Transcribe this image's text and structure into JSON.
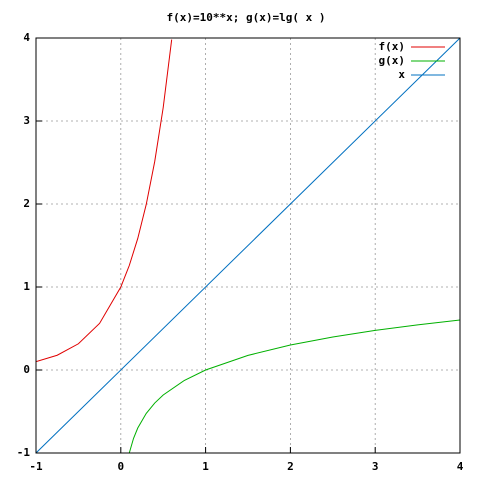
{
  "chart_data": {
    "type": "line",
    "title": "f(x)=10**x; g(x)=lg( x )",
    "series": [
      {
        "name": "f(x)",
        "color": "#e00000",
        "x": [
          -1,
          -0.75,
          -0.5,
          -0.25,
          0,
          0.1,
          0.2,
          0.3,
          0.4,
          0.5,
          0.6
        ],
        "values": [
          0.1,
          0.178,
          0.316,
          0.562,
          1,
          1.259,
          1.585,
          1.995,
          2.512,
          3.162,
          3.981
        ]
      },
      {
        "name": "g(x)",
        "color": "#00b000",
        "x": [
          0.1,
          0.15,
          0.2,
          0.3,
          0.4,
          0.5,
          0.75,
          1,
          1.5,
          2,
          2.5,
          3,
          3.5,
          4
        ],
        "values": [
          -1,
          -0.824,
          -0.699,
          -0.523,
          -0.398,
          -0.301,
          -0.125,
          0,
          0.176,
          0.301,
          0.398,
          0.477,
          0.544,
          0.602
        ]
      },
      {
        "name": "x",
        "color": "#0070c0",
        "x": [
          -1,
          4
        ],
        "values": [
          -1,
          4
        ]
      }
    ],
    "xlim": [
      -1,
      4
    ],
    "ylim": [
      -1,
      4
    ],
    "xticks": [
      -1,
      0,
      1,
      2,
      3,
      4
    ],
    "yticks": [
      -1,
      0,
      1,
      2,
      3,
      4
    ],
    "grid": true,
    "legend": "top-right"
  }
}
